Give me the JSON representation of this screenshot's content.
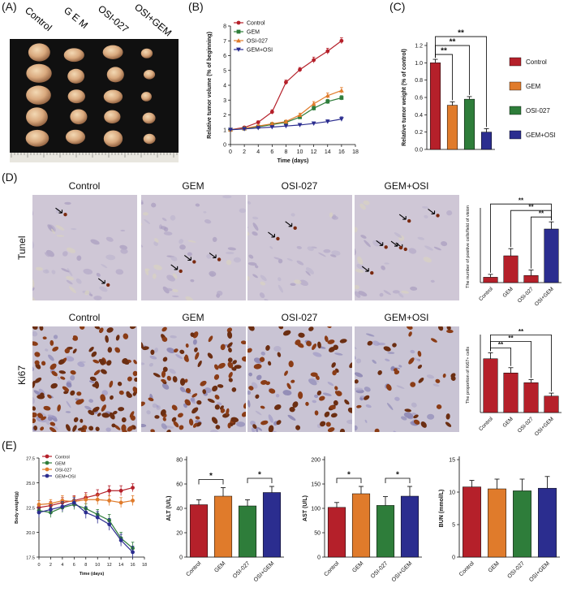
{
  "colors": {
    "control": "#b5202a",
    "gem": "#e07b2b",
    "osi": "#2e7d3a",
    "gemosi": "#2b2d8f"
  },
  "panels": {
    "a": "(A)",
    "b": "(B)",
    "c": "(C)",
    "d": "(D)",
    "e": "(E)"
  },
  "panel_a": {
    "labels": [
      "Control",
      "G E M",
      "OSI-027",
      "OSI+GEM"
    ]
  },
  "panel_d": {
    "headers_top": [
      "Control",
      "GEM",
      "OSI-027",
      "GEM+OSI"
    ],
    "headers_bottom": [
      "Control",
      "GEM",
      "OSI-027",
      "GEM+OSI"
    ],
    "row_tunel": "Tunel",
    "row_ki67": "Ki67"
  },
  "chart_data": [
    {
      "id": "b",
      "type": "line",
      "xlabel": "Time (days)",
      "ylabel": "Relative tumor volume (% of beginning)",
      "xlim": [
        0,
        18
      ],
      "ylim": [
        0,
        8
      ],
      "xticks": [
        0,
        2,
        4,
        6,
        8,
        10,
        12,
        14,
        16,
        18
      ],
      "yticks": [
        0,
        1,
        2,
        3,
        4,
        5,
        6,
        7,
        8
      ],
      "legend": "top-left",
      "x": [
        0,
        2,
        4,
        6,
        8,
        10,
        12,
        14,
        16
      ],
      "series": [
        {
          "name": "Control",
          "color": "#b5202a",
          "marker": "circle",
          "values": [
            1.0,
            1.15,
            1.5,
            2.2,
            4.2,
            5.05,
            5.7,
            6.3,
            7.0
          ],
          "err": [
            0.05,
            0.08,
            0.1,
            0.15,
            0.15,
            0.15,
            0.2,
            0.2,
            0.2
          ]
        },
        {
          "name": "GEM",
          "color": "#2e7d3a",
          "marker": "square",
          "values": [
            1.0,
            1.08,
            1.2,
            1.35,
            1.5,
            1.85,
            2.45,
            2.9,
            3.15
          ],
          "err": [
            0.05,
            0.05,
            0.08,
            0.1,
            0.1,
            0.12,
            0.15,
            0.15,
            0.15
          ]
        },
        {
          "name": "OSI-027",
          "color": "#e07b2b",
          "marker": "triangle",
          "values": [
            1.0,
            1.1,
            1.25,
            1.4,
            1.55,
            2.0,
            2.75,
            3.3,
            3.65
          ],
          "err": [
            0.05,
            0.06,
            0.08,
            0.1,
            0.1,
            0.12,
            0.15,
            0.18,
            0.2
          ]
        },
        {
          "name": "GEM+OSI",
          "color": "#2b2d8f",
          "marker": "triangle-down",
          "values": [
            1.0,
            1.05,
            1.12,
            1.18,
            1.25,
            1.32,
            1.42,
            1.55,
            1.72
          ],
          "err": [
            0.04,
            0.05,
            0.05,
            0.06,
            0.06,
            0.08,
            0.1,
            0.12,
            0.15
          ]
        }
      ]
    },
    {
      "id": "c",
      "type": "bar",
      "ylabel": "Relative tumor weight (% of control)",
      "ylim": [
        0,
        1.2
      ],
      "yticks": [
        "0.0",
        "0.2",
        "0.4",
        "0.6",
        "0.8",
        "1.0",
        "1.2"
      ],
      "legend": "right",
      "categories": [
        "Control",
        "GEM",
        "OSI-027",
        "GEM+OSI"
      ],
      "values": [
        1.0,
        0.51,
        0.58,
        0.2
      ],
      "err": [
        0.04,
        0.04,
        0.03,
        0.04
      ],
      "colors": [
        "#b5202a",
        "#e07b2b",
        "#2e7d3a",
        "#2b2d8f"
      ],
      "brackets": [
        {
          "from": 0,
          "to": 1,
          "label": "**"
        },
        {
          "from": 0,
          "to": 2,
          "label": "**"
        },
        {
          "from": 0,
          "to": 3,
          "label": "**"
        }
      ]
    },
    {
      "id": "d_tunel",
      "type": "bar",
      "ylabel": "The number of positive cells/field of vision",
      "ylim": [
        0,
        20
      ],
      "categories": [
        "Control",
        "GEM",
        "OSI-027",
        "OSI+GEM"
      ],
      "values": [
        1.5,
        7.5,
        2.0,
        15.0
      ],
      "err": [
        0.8,
        2.0,
        1.5,
        2.0
      ],
      "colors": [
        "#b5202a",
        "#b5202a",
        "#b5202a",
        "#2b2d8f"
      ],
      "brackets": [
        {
          "from": 2,
          "to": 3,
          "label": "**"
        },
        {
          "from": 1,
          "to": 3,
          "label": "**"
        },
        {
          "from": 0,
          "to": 3,
          "label": "**"
        }
      ]
    },
    {
      "id": "d_ki67",
      "type": "bar",
      "ylabel": "The proportion of Ki67+ cells",
      "ylim": [
        0,
        100
      ],
      "categories": [
        "Control",
        "GEM",
        "OSI-027",
        "OSI+GEM"
      ],
      "values": [
        72,
        53,
        40,
        22
      ],
      "err": [
        8,
        7,
        4,
        4
      ],
      "colors": [
        "#b5202a",
        "#b5202a",
        "#b5202a",
        "#b5202a"
      ],
      "brackets": [
        {
          "from": 0,
          "to": 1,
          "label": "**"
        },
        {
          "from": 0,
          "to": 2,
          "label": "**"
        },
        {
          "from": 0,
          "to": 3,
          "label": "**"
        }
      ]
    },
    {
      "id": "e_bw",
      "type": "line",
      "xlabel": "Time (days)",
      "ylabel": "Body weight(g)",
      "xlim": [
        0,
        18
      ],
      "ylim": [
        17.5,
        27.5
      ],
      "xticks": [
        0,
        2,
        4,
        6,
        8,
        10,
        12,
        14,
        16,
        18
      ],
      "yticks": [
        "17.5",
        "20.0",
        "22.5",
        "25.0",
        "27.5"
      ],
      "legend": "top-left",
      "x": [
        0,
        2,
        4,
        6,
        8,
        10,
        12,
        14,
        16
      ],
      "series": [
        {
          "name": "Control",
          "color": "#b5202a",
          "values": [
            22.5,
            22.7,
            23.0,
            23.2,
            23.5,
            23.8,
            24.2,
            24.2,
            24.5
          ],
          "err": [
            0.4,
            0.4,
            0.5,
            0.5,
            0.5,
            0.5,
            0.5,
            0.5,
            0.4
          ]
        },
        {
          "name": "GEM",
          "color": "#2e7d3a",
          "values": [
            22.2,
            22.0,
            22.5,
            22.8,
            22.4,
            21.8,
            21.2,
            19.4,
            18.4
          ],
          "err": [
            0.5,
            0.5,
            0.5,
            0.5,
            0.5,
            0.5,
            0.6,
            0.6,
            0.6
          ]
        },
        {
          "name": "OSI-027",
          "color": "#e07b2b",
          "values": [
            22.8,
            22.9,
            23.2,
            23.1,
            23.3,
            23.3,
            23.2,
            23.0,
            23.2
          ],
          "err": [
            0.4,
            0.4,
            0.5,
            0.5,
            0.5,
            0.5,
            0.5,
            0.5,
            0.5
          ]
        },
        {
          "name": "GEM+OSI",
          "color": "#2b2d8f",
          "values": [
            22.0,
            22.3,
            22.6,
            23.0,
            22.0,
            21.5,
            20.8,
            19.2,
            18.0
          ],
          "err": [
            0.5,
            0.5,
            0.5,
            0.5,
            0.6,
            0.6,
            0.6,
            0.6,
            0.6
          ]
        }
      ]
    },
    {
      "id": "e_alt",
      "type": "bar",
      "ylabel": "ALT (U/L)",
      "ylim": [
        0,
        80
      ],
      "yticks": [
        0,
        20,
        40,
        60,
        80
      ],
      "categories": [
        "Control",
        "GEM",
        "OSI-027",
        "OSI+GEM"
      ],
      "values": [
        43,
        50,
        42,
        53
      ],
      "err": [
        4,
        7,
        5,
        5
      ],
      "colors": [
        "#b5202a",
        "#e07b2b",
        "#2e7d3a",
        "#2b2d8f"
      ],
      "brackets": [
        {
          "from": 0,
          "to": 1,
          "label": "*"
        },
        {
          "from": 2,
          "to": 3,
          "label": "*"
        }
      ]
    },
    {
      "id": "e_ast",
      "type": "bar",
      "ylabel": "AST (U/L)",
      "ylim": [
        0,
        200
      ],
      "yticks": [
        0,
        50,
        100,
        150,
        200
      ],
      "categories": [
        "Control",
        "GEM",
        "OSI-027",
        "OSI+GEM"
      ],
      "values": [
        102,
        130,
        106,
        125
      ],
      "err": [
        10,
        15,
        18,
        20
      ],
      "colors": [
        "#b5202a",
        "#e07b2b",
        "#2e7d3a",
        "#2b2d8f"
      ],
      "brackets": [
        {
          "from": 0,
          "to": 1,
          "label": "*"
        },
        {
          "from": 2,
          "to": 3,
          "label": "*"
        }
      ]
    },
    {
      "id": "e_bun",
      "type": "bar",
      "ylabel": "BUN (mmol/L)",
      "ylim": [
        0,
        15
      ],
      "yticks": [
        0,
        5,
        10,
        15
      ],
      "categories": [
        "Control",
        "GEM",
        "OSI-027",
        "OSI+GEM"
      ],
      "values": [
        10.8,
        10.5,
        10.2,
        10.6
      ],
      "err": [
        1.0,
        1.5,
        1.8,
        1.8
      ],
      "colors": [
        "#b5202a",
        "#e07b2b",
        "#2e7d3a",
        "#2b2d8f"
      ],
      "brackets": []
    }
  ]
}
